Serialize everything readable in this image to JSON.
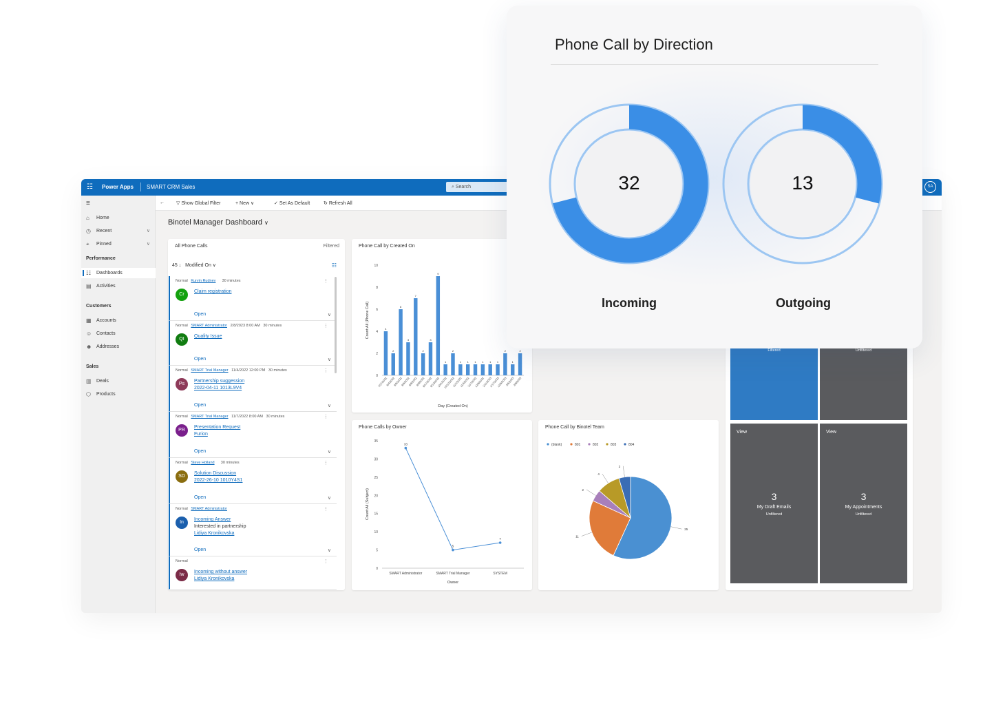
{
  "header": {
    "brand": "Power Apps",
    "app_name": "SMART CRM Sales",
    "search_placeholder": "Search",
    "avatar_initials": "SA"
  },
  "sidebar": {
    "top_items": [
      {
        "label": "Home",
        "icon": "home-icon"
      },
      {
        "label": "Recent",
        "icon": "clock-icon"
      },
      {
        "label": "Pinned",
        "icon": "pin-icon"
      }
    ],
    "groups": [
      {
        "title": "Performance",
        "items": [
          {
            "label": "Dashboards",
            "icon": "dashboard-icon",
            "active": true
          },
          {
            "label": "Activities",
            "icon": "clipboard-icon"
          }
        ]
      },
      {
        "title": "Customers",
        "items": [
          {
            "label": "Accounts",
            "icon": "building-icon"
          },
          {
            "label": "Contacts",
            "icon": "person-icon"
          },
          {
            "label": "Addresses",
            "icon": "people-icon"
          }
        ]
      },
      {
        "title": "Sales",
        "items": [
          {
            "label": "Deals",
            "icon": "document-icon"
          },
          {
            "label": "Products",
            "icon": "box-icon"
          }
        ]
      }
    ]
  },
  "commands": {
    "show_global_filter": "Show Global Filter",
    "new": "New",
    "set_as_default": "Set As Default",
    "refresh_all": "Refresh All"
  },
  "dashboard": {
    "title": "Binotel Manager Dashboard"
  },
  "phone_calls_list": {
    "title": "All Phone Calls",
    "filter": "Filtered",
    "count": "45",
    "sort_field": "Modified On",
    "records": [
      {
        "priority": "Normal",
        "owner": "Kurvin Rudnev",
        "date": "",
        "duration": "30 minutes",
        "initials": "Cr",
        "color": "#13a10e",
        "subject": "Claim registration",
        "line2": "",
        "line3": "",
        "status": "Open"
      },
      {
        "priority": "Normal",
        "owner": "SMART Administrator",
        "date": "2/8/2023 8:00 AM",
        "duration": "30 minutes",
        "initials": "QI",
        "color": "#107c10",
        "subject": "Quality Issue",
        "line2": "",
        "line3": "",
        "status": "Open"
      },
      {
        "priority": "Normal",
        "owner": "SMART Trial Manager",
        "date": "11/4/2022 12:00 PM",
        "duration": "30 minutes",
        "initials": "Ps",
        "color": "#8e3a59",
        "subject": "Partnership suggession",
        "line2": "",
        "line3": "2022-04-11 1013L9V4",
        "status": "Open"
      },
      {
        "priority": "Normal",
        "owner": "SMART Trial Manager",
        "date": "11/7/2022 8:00 AM",
        "duration": "30 minutes",
        "initials": "PR",
        "color": "#7a1f8c",
        "subject": "Presentation Request",
        "line2": "",
        "line3": "Furion",
        "status": "Open"
      },
      {
        "priority": "Normal",
        "owner": "Steve Holland",
        "date": "",
        "duration": "30 minutes",
        "initials": "SD",
        "color": "#8a6d0f",
        "subject": "Solution Discussion",
        "line2": "",
        "line3": "2022-26-10 1010Y4S1",
        "status": "Open"
      },
      {
        "priority": "Normal",
        "owner": "SMART Administrator",
        "date": "",
        "duration": "",
        "initials": "In",
        "color": "#1b5fad",
        "subject": "Incoming  Answer",
        "line2": "Interested in partnership",
        "line3": "Lidiya Kronikovska",
        "status": "Open"
      },
      {
        "priority": "Normal",
        "owner": "",
        "date": "",
        "duration": "",
        "initials": "Iw",
        "color": "#7b2b47",
        "subject": "Incoming without answer",
        "line2": "",
        "line3": "Lidiya Kronikovska",
        "status": ""
      }
    ]
  },
  "created_on_chart": {
    "title": "Phone Call by Created On",
    "xlabel": "Day (Created On)",
    "ylabel": "Count:All (Phone Call)"
  },
  "owner_chart": {
    "title": "Phone Calls by Owner",
    "xlabel": "Owner",
    "ylabel": "Count:All (Subject)"
  },
  "team_chart": {
    "title": "Phone Call by Binotel Team"
  },
  "tiles": [
    {
      "label": "Filtered",
      "view": "",
      "count": "",
      "name": "",
      "sub": "",
      "color": "#2f7bc4"
    },
    {
      "label": "Unfiltered",
      "view": "",
      "count": "",
      "name": "",
      "sub": "",
      "color": "#5a5b5e"
    },
    {
      "label": "",
      "view": "View",
      "count": "3",
      "name": "My Draft Emails",
      "sub": "Unfiltered",
      "color": "#5a5b5e"
    },
    {
      "label": "",
      "view": "View",
      "count": "3",
      "name": "My Appointments",
      "sub": "Unfiltered",
      "color": "#5a5b5e"
    }
  ],
  "direction_panel": {
    "title": "Phone Call by Direction",
    "gauges": [
      {
        "label": "Incoming",
        "value": "32",
        "fraction": 0.71
      },
      {
        "label": "Outgoing",
        "value": "13",
        "fraction": 0.29
      }
    ]
  },
  "colors": {
    "accent": "#0f6cbd",
    "bar": "#4a8fd6",
    "gauge": "#3a8ee6",
    "gauge_track": "#9cc6f2"
  },
  "chart_data": [
    {
      "type": "bar",
      "title": "Phone Call by Created On",
      "xlabel": "Day (Created On)",
      "ylabel": "Count:All (Phone Call)",
      "ylim": [
        0,
        10
      ],
      "yticks": [
        0,
        2,
        4,
        6,
        8,
        10
      ],
      "categories": [
        "7/27/2022",
        "8/4/2022",
        "8/5/2022",
        "8/6/2022",
        "8/8/2022",
        "8/9/2022",
        "8/17/2022",
        "9/13/2022",
        "10/1/2022",
        "10/12/2022",
        "11/1/2022",
        "11/4/2022",
        "11/7/2022",
        "12/8/2022",
        "1/11/2023",
        "1/17/2023",
        "1/25/2023",
        "2/6/2023",
        "2/8/2023"
      ],
      "values": [
        4,
        2,
        6,
        3,
        7,
        2,
        3,
        9,
        1,
        2,
        1,
        1,
        1,
        1,
        1,
        1,
        2,
        1,
        2
      ],
      "labels": [
        "4",
        "2",
        "6",
        "3",
        "7",
        "2",
        "3",
        "9",
        "1",
        "2",
        "1",
        "1",
        "1",
        "1",
        "1",
        "1",
        "2",
        "1",
        "2"
      ]
    },
    {
      "type": "line",
      "title": "Phone Calls by Owner",
      "xlabel": "Owner",
      "ylabel": "Count:All (Subject)",
      "ylim": [
        0,
        35
      ],
      "yticks": [
        0,
        5,
        10,
        15,
        20,
        25,
        30,
        35
      ],
      "categories": [
        "SMART Administrator",
        "SMART Trial Manager",
        "SYSTEM"
      ],
      "values": [
        33,
        5,
        7
      ]
    },
    {
      "type": "pie",
      "title": "Phone Call by Binotel Team",
      "legend": [
        "(blank)",
        "801",
        "802",
        "803",
        "804"
      ],
      "values": [
        25,
        11,
        2,
        4,
        2
      ],
      "colors": [
        "#4a90d2",
        "#e07b39",
        "#a87fba",
        "#b89a27",
        "#3a6db5"
      ],
      "labels": [
        "25",
        "11",
        "2",
        "4",
        "2"
      ]
    }
  ]
}
